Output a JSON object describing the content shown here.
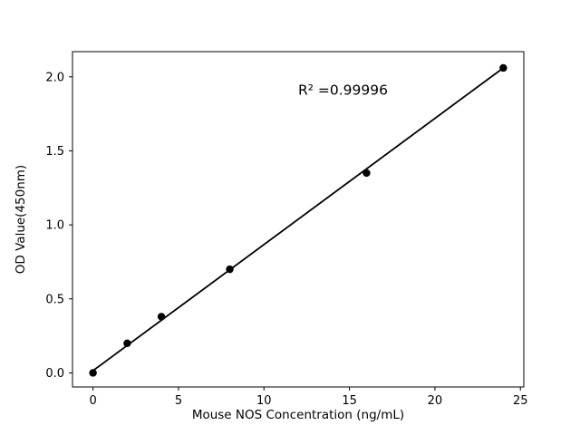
{
  "chart_data": {
    "type": "scatter",
    "title": "",
    "xlabel": "Mouse NOS Concentration (ng/mL)",
    "ylabel": "OD Value(450nm)",
    "annotation": "R² =0.99996",
    "annotation_pos": {
      "x": 12,
      "y": 1.88
    },
    "x": [
      0,
      2,
      4,
      8,
      16,
      24
    ],
    "y": [
      0.0,
      0.2,
      0.38,
      0.7,
      1.35,
      2.06
    ],
    "fit_line": {
      "x": [
        0,
        24
      ],
      "y": [
        0.015,
        2.06
      ]
    },
    "xlim": [
      -1.2,
      25.2
    ],
    "ylim": [
      -0.095,
      2.17
    ],
    "xticks": [
      {
        "v": 0,
        "label": "0"
      },
      {
        "v": 5,
        "label": "5"
      },
      {
        "v": 10,
        "label": "10"
      },
      {
        "v": 15,
        "label": "15"
      },
      {
        "v": 20,
        "label": "20"
      },
      {
        "v": 25,
        "label": "25"
      }
    ],
    "yticks": [
      {
        "v": 0.0,
        "label": "0.0"
      },
      {
        "v": 0.5,
        "label": "0.5"
      },
      {
        "v": 1.0,
        "label": "1.0"
      },
      {
        "v": 1.5,
        "label": "1.5"
      },
      {
        "v": 2.0,
        "label": "2.0"
      }
    ],
    "grid": false,
    "legend": null,
    "marker_color": "#000000",
    "line_color": "#000000",
    "axis_color": "#000000",
    "background_color": "#ffffff"
  }
}
